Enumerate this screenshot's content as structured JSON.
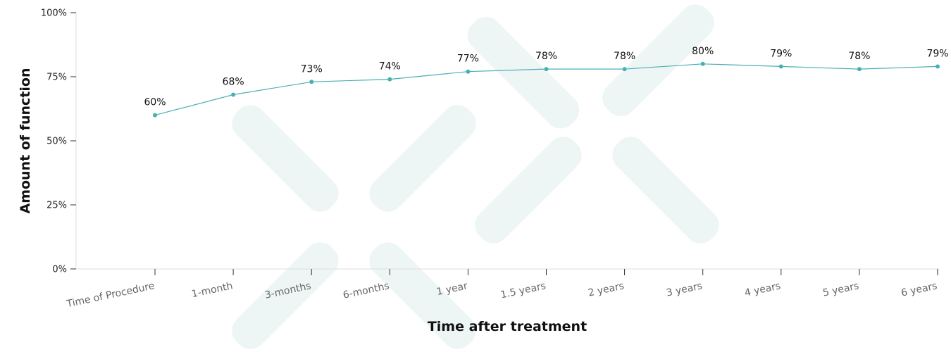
{
  "chart_data": {
    "type": "line",
    "title": "",
    "xlabel": "Time after treatment",
    "ylabel": "Amount of function",
    "categories": [
      "Time of Procedure",
      "1-month",
      "3-months",
      "6-months",
      "1 year",
      "1.5 years",
      "2 years",
      "3 years",
      "4 years",
      "5 years",
      "6 years"
    ],
    "series": [
      {
        "values": [
          60,
          68,
          73,
          74,
          77,
          78,
          78,
          80,
          79,
          78,
          79
        ]
      }
    ],
    "data_labels": [
      "60%",
      "68%",
      "73%",
      "74%",
      "77%",
      "78%",
      "78%",
      "80%",
      "79%",
      "78%",
      "79%"
    ],
    "yticks": [
      {
        "value": 0,
        "label": "0%"
      },
      {
        "value": 25,
        "label": "25%"
      },
      {
        "value": 50,
        "label": "50%"
      },
      {
        "value": 75,
        "label": "75%"
      },
      {
        "value": 100,
        "label": "100%"
      }
    ],
    "ylim": [
      0,
      100
    ],
    "grid": false,
    "legend": "none",
    "colors": {
      "line": "#4aafb4",
      "axis": "#dddddd",
      "watermark": "#eef5f5"
    }
  }
}
